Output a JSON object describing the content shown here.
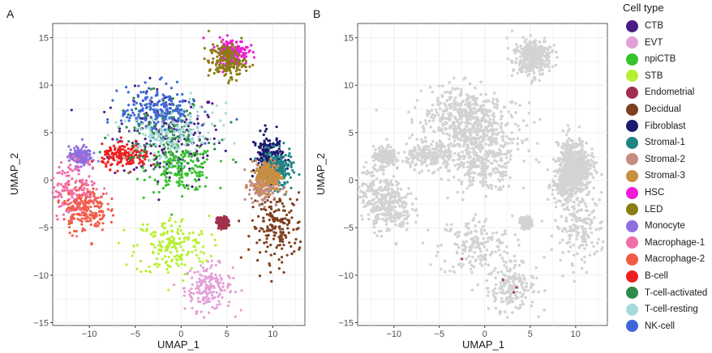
{
  "chart_data": [
    {
      "panel": "A",
      "type": "scatter",
      "xlabel": "UMAP_1",
      "ylabel": "UMAP_2",
      "xlim": [
        -14,
        13.5
      ],
      "ylim": [
        -15.3,
        16.5
      ],
      "xticks": [
        -10,
        -5,
        0,
        5,
        10
      ],
      "yticks": [
        -15,
        -10,
        -5,
        0,
        5,
        10,
        15
      ],
      "grid": true,
      "clusters": [
        {
          "name": "CTB",
          "cx": -1.5,
          "cy": 4.5,
          "sx": 3.0,
          "sy": 2.5
        },
        {
          "name": "EVT",
          "cx": 3.0,
          "cy": -11.3,
          "sx": 1.3,
          "sy": 1.2
        },
        {
          "name": "npiCTB",
          "cx": 0.0,
          "cy": 1.2,
          "sx": 1.8,
          "sy": 1.2
        },
        {
          "name": "STB",
          "cx": -1.0,
          "cy": -7.0,
          "sx": 2.0,
          "sy": 1.6
        },
        {
          "name": "Endometrial",
          "cx": 4.5,
          "cy": -4.5,
          "sx": 0.3,
          "sy": 0.3
        },
        {
          "name": "Decidual",
          "cx": 10.5,
          "cy": -5.0,
          "sx": 1.4,
          "sy": 1.8
        },
        {
          "name": "Fibroblast",
          "cx": 9.5,
          "cy": 2.5,
          "sx": 0.8,
          "sy": 1.2
        },
        {
          "name": "Stromal-1",
          "cx": 10.5,
          "cy": 1.0,
          "sx": 0.8,
          "sy": 1.0
        },
        {
          "name": "Stromal-2",
          "cx": 9.0,
          "cy": -0.5,
          "sx": 0.8,
          "sy": 1.0
        },
        {
          "name": "Stromal-3",
          "cx": 9.5,
          "cy": 0.5,
          "sx": 0.7,
          "sy": 0.8
        },
        {
          "name": "HSC",
          "cx": 5.5,
          "cy": 13.5,
          "sx": 0.9,
          "sy": 0.7
        },
        {
          "name": "LED",
          "cx": 5.0,
          "cy": 12.5,
          "sx": 1.0,
          "sy": 0.9
        },
        {
          "name": "Monocyte",
          "cx": -11.0,
          "cy": 2.5,
          "sx": 0.6,
          "sy": 0.5
        },
        {
          "name": "Macrophage-1",
          "cx": -11.5,
          "cy": -1.0,
          "sx": 1.3,
          "sy": 1.6
        },
        {
          "name": "Macrophage-2",
          "cx": -10.5,
          "cy": -3.0,
          "sx": 1.2,
          "sy": 1.2
        },
        {
          "name": "B-cell",
          "cx": -6.0,
          "cy": 2.5,
          "sx": 1.3,
          "sy": 0.6
        },
        {
          "name": "T-cell-activated",
          "cx": -2.0,
          "cy": 5.0,
          "sx": 2.5,
          "sy": 1.8
        },
        {
          "name": "T-cell-resting",
          "cx": -1.0,
          "cy": 5.0,
          "sx": 2.5,
          "sy": 1.5
        },
        {
          "name": "NK-cell",
          "cx": -2.5,
          "cy": 7.5,
          "sx": 2.0,
          "sy": 1.2
        }
      ]
    },
    {
      "panel": "B",
      "type": "scatter",
      "xlabel": "UMAP_1",
      "ylabel": "UMAP_2",
      "xlim": [
        -14,
        13.5
      ],
      "ylim": [
        -15.3,
        16.5
      ],
      "xticks": [
        -10,
        -5,
        0,
        5,
        10
      ],
      "yticks": [
        -15,
        -10,
        -5,
        0,
        5,
        10,
        15
      ],
      "grid": true,
      "background_color": "#d3d3d3",
      "highlighted_points": [
        {
          "x": -2.5,
          "y": -8.3
        },
        {
          "x": 2.0,
          "y": -10.5
        },
        {
          "x": 3.5,
          "y": -11.3
        },
        {
          "x": 3.2,
          "y": -11.8
        }
      ],
      "highlight_color": "#a0304d"
    }
  ],
  "panels": [
    {
      "letter": "A"
    },
    {
      "letter": "B"
    }
  ],
  "legend": {
    "title": "Cell type",
    "position": "right",
    "items": [
      {
        "label": "CTB",
        "color": "#4a1d86"
      },
      {
        "label": "EVT",
        "color": "#e3a0d6"
      },
      {
        "label": "npiCTB",
        "color": "#37c22e"
      },
      {
        "label": "STB",
        "color": "#b7f032"
      },
      {
        "label": "Endometrial",
        "color": "#a0304d"
      },
      {
        "label": "Decidual",
        "color": "#7d3f1f"
      },
      {
        "label": "Fibroblast",
        "color": "#1b1a6f"
      },
      {
        "label": "Stromal-1",
        "color": "#1f8583"
      },
      {
        "label": "Stromal-2",
        "color": "#c68a80"
      },
      {
        "label": "Stromal-3",
        "color": "#c98f40"
      },
      {
        "label": "HSC",
        "color": "#f01bd7"
      },
      {
        "label": "LED",
        "color": "#8a7d12"
      },
      {
        "label": "Monocyte",
        "color": "#8e6fe0"
      },
      {
        "label": "Macrophage-1",
        "color": "#f06fa7"
      },
      {
        "label": "Macrophage-2",
        "color": "#f25c45"
      },
      {
        "label": "B-cell",
        "color": "#ee1f1f"
      },
      {
        "label": "T-cell-activated",
        "color": "#2f8a4f"
      },
      {
        "label": "T-cell-resting",
        "color": "#a8d9d9"
      },
      {
        "label": "NK-cell",
        "color": "#3f66d9"
      }
    ]
  }
}
